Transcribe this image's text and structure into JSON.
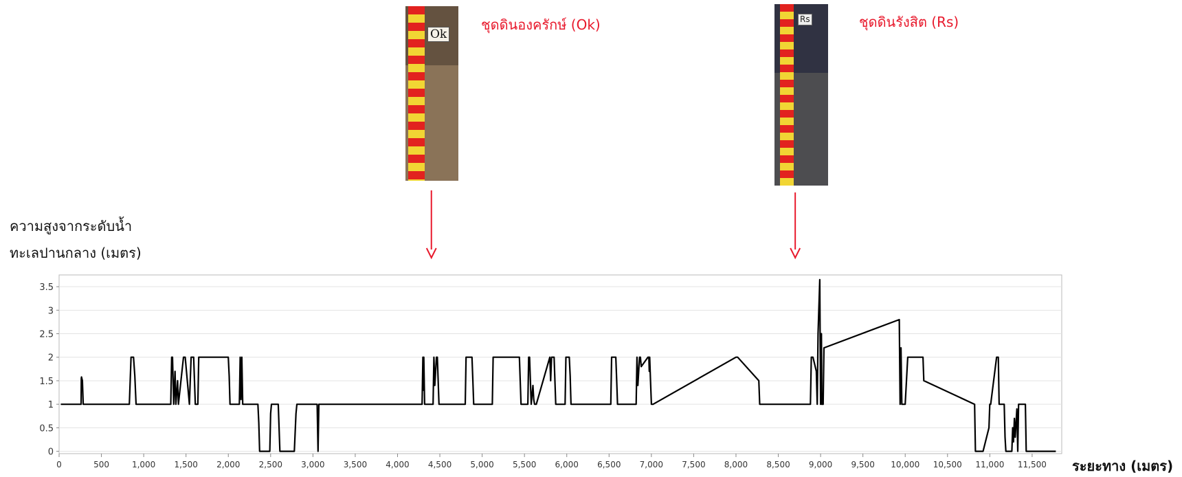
{
  "soil_samples": [
    {
      "label": "ชุดดินองครักษ์ (Ok)",
      "tag": "Ok",
      "soil_color": "#8a7358",
      "x_position": 4400
    },
    {
      "label": "ชุดดินรังสิต (Rs)",
      "tag": "Rs",
      "soil_color": "#4d4d50",
      "x_position": 8700
    }
  ],
  "arrow_color": "#e8192c",
  "chart_data": {
    "type": "line",
    "ylabel_lines": [
      "ความสูงจากระดับน้ำ",
      "ทะเลปานกลาง (เมตร)"
    ],
    "xlabel": "ระยะทาง (เมตร)",
    "xlim": [
      0,
      11850
    ],
    "ylim": [
      -0.05,
      3.75
    ],
    "xticks": [
      0,
      500,
      1000,
      1500,
      2000,
      2500,
      3000,
      3500,
      4000,
      4500,
      5000,
      5500,
      6000,
      6500,
      7000,
      7500,
      8000,
      8500,
      9000,
      9500,
      10000,
      10500,
      11000,
      11500
    ],
    "xtick_labels": [
      "0",
      "500",
      "1,000",
      "1,500",
      "2,000",
      "2,500",
      "3,000",
      "3,500",
      "4,000",
      "4,500",
      "5,000",
      "5,500",
      "6,000",
      "6,500",
      "7,000",
      "7,500",
      "8,000",
      "8,500",
      "9,000",
      "9,500",
      "10,000",
      "10,500",
      "11,000",
      "11,500"
    ],
    "yticks": [
      0,
      0.5,
      1,
      1.5,
      2,
      2.5,
      3,
      3.5
    ],
    "ytick_labels": [
      "0",
      "0.5",
      "1",
      "1.5",
      "2",
      "2.5",
      "3",
      "3.5"
    ],
    "grid": "horizontal",
    "line_color": "#000000",
    "series": [
      {
        "x": [
          20,
          260,
          262,
          265,
          275,
          285,
          290,
          830,
          850,
          880,
          895,
          910,
          1320,
          1330,
          1340,
          1355,
          1370,
          1380,
          1400,
          1410,
          1470,
          1490,
          1540,
          1560,
          1590,
          1610,
          1640,
          1650,
          1660,
          1690,
          1710,
          1720,
          1750,
          2000,
          2010,
          2020,
          2030,
          2130,
          2140,
          2150,
          2160,
          2170,
          2200,
          2350,
          2360,
          2370,
          2380,
          2490,
          2500,
          2510,
          2520,
          2590,
          2600,
          2610,
          2620,
          2780,
          2800,
          2810,
          3050,
          3060,
          3070,
          4290,
          4300,
          4305,
          4310,
          4320,
          4420,
          4430,
          4440,
          4460,
          4470,
          4480,
          4490,
          4800,
          4810,
          4820,
          4880,
          4890,
          4900,
          5120,
          5130,
          5140,
          5440,
          5450,
          5460,
          5540,
          5550,
          5560,
          5580,
          5600,
          5610,
          5620,
          5630,
          5640,
          5800,
          5810,
          5820,
          5850,
          5860,
          5870,
          5980,
          5990,
          6000,
          6030,
          6040,
          6050,
          6520,
          6530,
          6540,
          6580,
          6590,
          6600,
          6820,
          6830,
          6840,
          6860,
          6870,
          6880,
          6960,
          6970,
          6975,
          6980,
          6990,
          7000,
          7010,
          7020,
          8000,
          8010,
          8020,
          8270,
          8280,
          8290,
          8880,
          8890,
          8910,
          8950,
          8960,
          8970,
          8990,
          9000,
          9010,
          9015,
          9020,
          9030,
          9040,
          9930,
          9940,
          9950,
          9960,
          9970,
          10000,
          10030,
          10200,
          10210,
          10220,
          10820,
          10830,
          10840,
          10900,
          10920,
          10990,
          11000,
          11010,
          11080,
          11100,
          11110,
          11170,
          11180,
          11190,
          11200,
          11250,
          11260,
          11270,
          11280,
          11290,
          11300,
          11320,
          11330,
          11340,
          11400,
          11420,
          11430,
          11780
        ],
        "values": [
          1,
          1,
          1.55,
          1.58,
          1.5,
          1,
          1,
          1,
          2,
          2,
          1.6,
          1,
          1,
          2,
          2,
          1,
          1.7,
          1,
          1.5,
          1,
          2,
          2,
          1,
          2,
          2,
          1,
          1,
          2,
          2,
          2,
          2,
          2,
          2,
          2,
          1.6,
          1,
          1,
          1,
          2,
          1.1,
          2,
          1,
          1,
          1,
          0.6,
          0,
          0,
          0,
          0.8,
          1,
          1,
          1,
          0.5,
          0,
          0,
          0,
          0.8,
          1,
          1,
          0,
          1,
          1,
          2,
          1.3,
          2,
          1,
          1,
          2,
          1.4,
          2,
          2,
          1.5,
          1,
          1,
          2,
          2,
          2,
          1.5,
          1,
          1,
          2,
          2,
          2,
          1.5,
          1,
          1,
          2,
          2,
          1,
          1.4,
          1.1,
          1,
          1,
          1,
          2,
          1.5,
          2,
          2,
          1.5,
          1,
          1,
          2,
          2,
          2,
          1.6,
          1,
          1,
          2,
          2,
          2,
          1.5,
          1,
          1,
          2,
          1.4,
          2,
          2,
          1.8,
          2,
          2,
          1.7,
          2,
          1.5,
          1,
          1,
          1,
          2,
          2,
          2,
          1.5,
          1,
          1,
          1,
          2,
          2,
          1.7,
          1,
          2.5,
          3.65,
          1,
          2.5,
          1,
          1,
          1,
          2.2,
          2.8,
          1,
          2.2,
          1,
          1,
          1,
          2,
          2,
          2,
          1.5,
          1,
          0,
          0,
          0,
          0,
          0.5,
          1,
          1,
          2,
          2,
          1,
          1,
          0.3,
          0,
          0,
          0,
          0,
          0.5,
          0.2,
          0.7,
          0.3,
          0.9,
          0,
          1,
          1,
          1,
          0,
          0
        ]
      }
    ]
  }
}
